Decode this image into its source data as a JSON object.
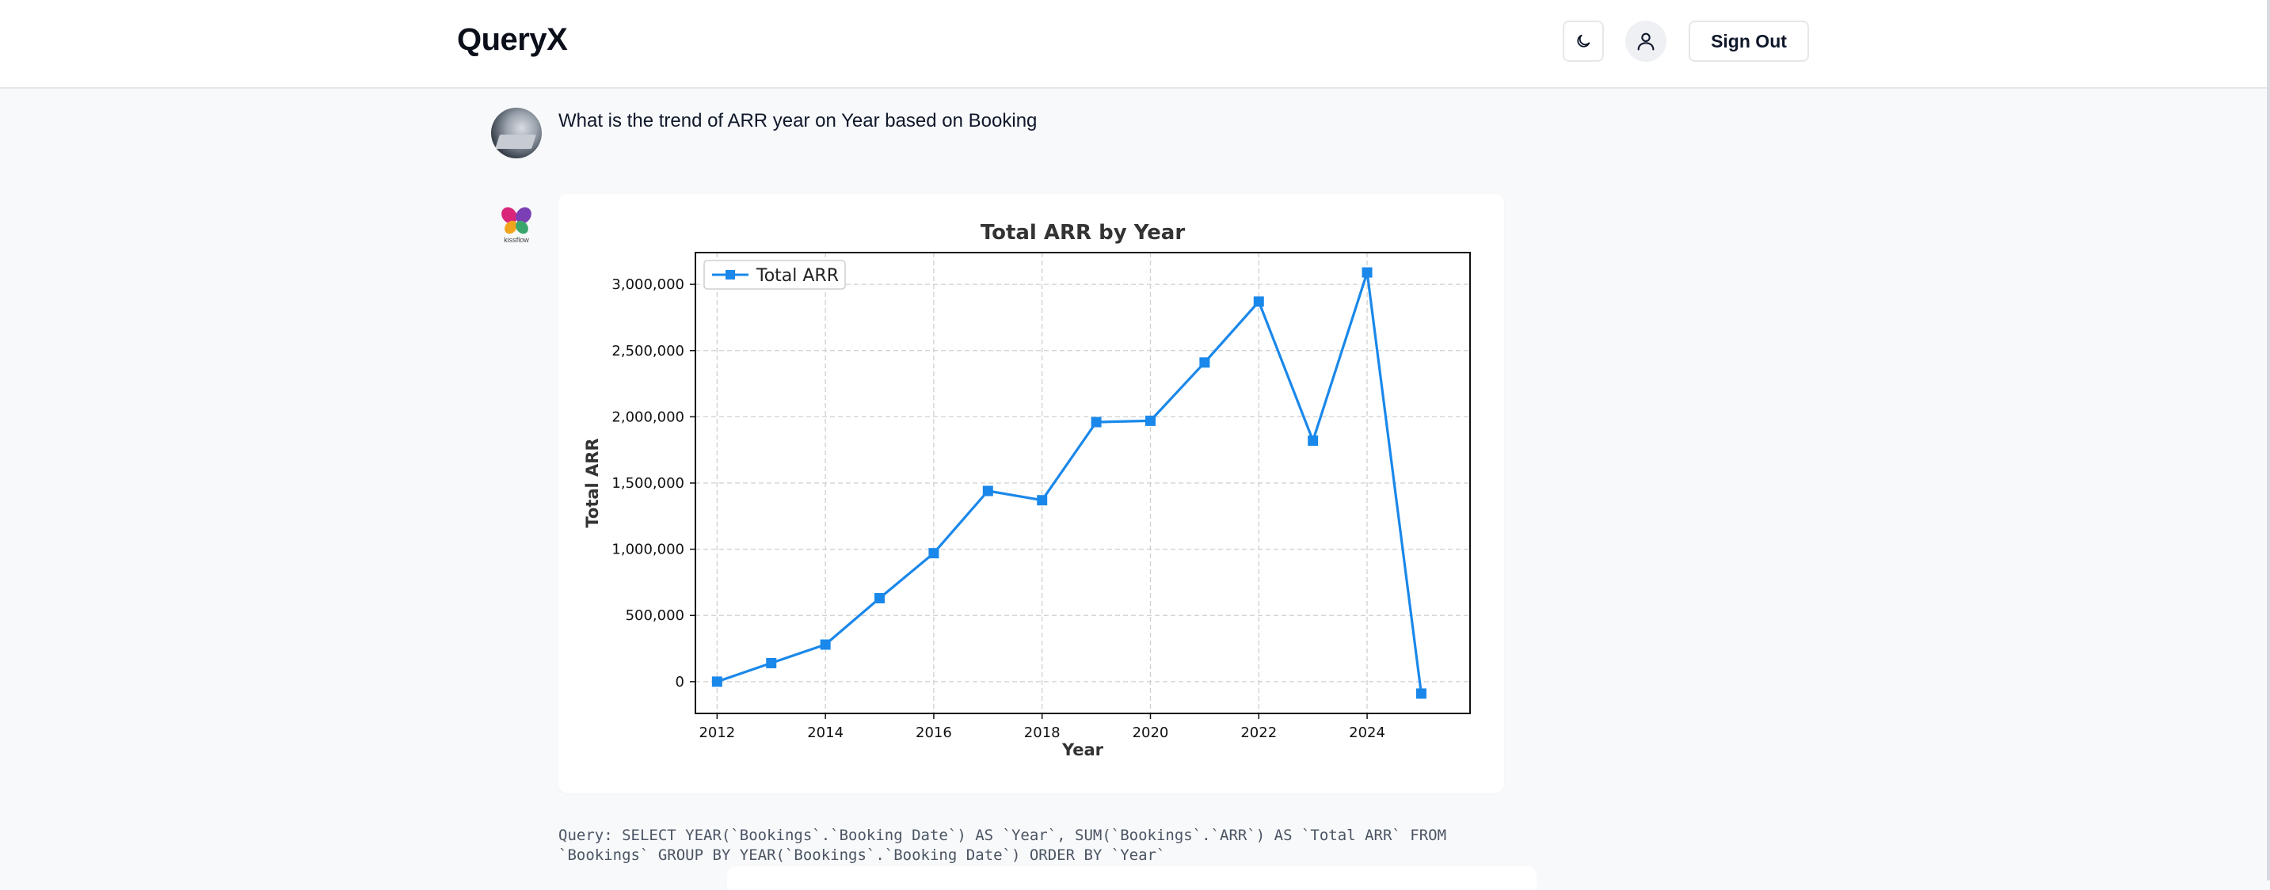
{
  "app": {
    "title": "QueryX"
  },
  "header": {
    "sign_out_label": "Sign Out",
    "theme_icon": "moon-icon",
    "user_icon": "user-icon"
  },
  "conversation": {
    "question": "What is the trend of ARR year on Year based on Booking",
    "bot_logo_caption": "kissflow",
    "query_text": "Query: SELECT YEAR(`Bookings`.`Booking Date`) AS `Year`, SUM(`Bookings`.`ARR`) AS `Total ARR` FROM\n`Bookings` GROUP BY YEAR(`Bookings`.`Booking Date`) ORDER BY `Year`"
  },
  "colors": {
    "series": "#1a88ea",
    "accent": "#0f172a"
  },
  "chart_data": {
    "type": "line",
    "title": "Total ARR by Year",
    "xlabel": "Year",
    "ylabel": "Total ARR",
    "legend_position": "top-left",
    "grid": true,
    "marker": "square",
    "x": [
      2012,
      2013,
      2014,
      2015,
      2016,
      2017,
      2018,
      2019,
      2020,
      2021,
      2022,
      2023,
      2024,
      2025
    ],
    "series": [
      {
        "name": "Total ARR",
        "color": "#1a88ea",
        "values": [
          0,
          140000,
          280000,
          630000,
          970000,
          1440000,
          1370000,
          1960000,
          1970000,
          2410000,
          2870000,
          1820000,
          3090000,
          -90000
        ]
      }
    ],
    "xlim": [
      2011.6,
      2025.9
    ],
    "ylim": [
      -240000,
      3240000
    ],
    "xticks": [
      2012,
      2014,
      2016,
      2018,
      2020,
      2022,
      2024
    ],
    "xtick_labels": [
      "2012",
      "2014",
      "2016",
      "2018",
      "2020",
      "2022",
      "2024"
    ],
    "yticks": [
      0,
      500000,
      1000000,
      1500000,
      2000000,
      2500000,
      3000000
    ],
    "ytick_labels": [
      "0",
      "500,000",
      "1,000,000",
      "1,500,000",
      "2,000,000",
      "2,500,000",
      "3,000,000"
    ]
  }
}
